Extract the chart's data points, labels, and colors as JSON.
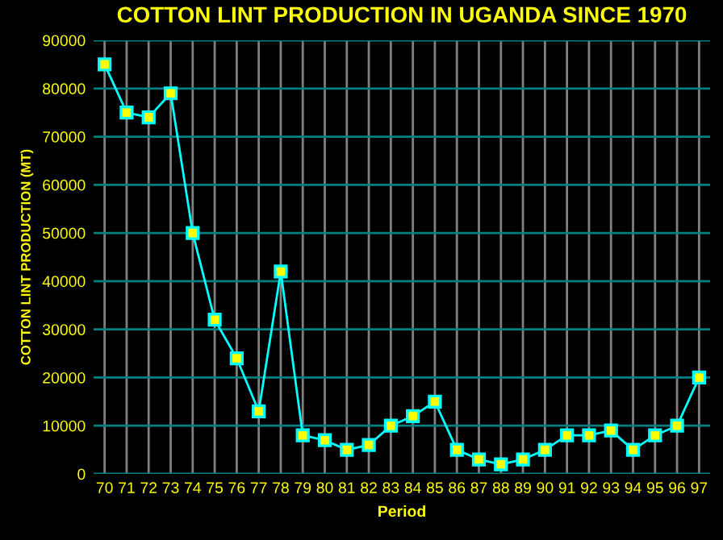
{
  "chart_data": {
    "type": "line",
    "title": "COTTON LINT PRODUCTION IN UGANDA SINCE 1970",
    "xlabel": "Period",
    "ylabel": "COTTON LINT PRODUCTION (MT)",
    "categories": [
      "70",
      "71",
      "72",
      "73",
      "74",
      "75",
      "76",
      "77",
      "78",
      "79",
      "80",
      "81",
      "82",
      "83",
      "84",
      "85",
      "86",
      "87",
      "88",
      "89",
      "90",
      "91",
      "92",
      "93",
      "94",
      "95",
      "96",
      "97"
    ],
    "series": [
      {
        "color": "#00ffff",
        "values": [
          85000,
          75000,
          74000,
          79000,
          50000,
          32000,
          24000,
          13000,
          42000,
          8000,
          7000,
          5000,
          6000,
          10000,
          12000,
          15000,
          5000,
          3000,
          2000,
          3000,
          5000,
          8000,
          8000,
          9000,
          5000,
          8000,
          10000,
          20000
        ]
      }
    ],
    "ylim": [
      0,
      90000
    ],
    "yticks": [
      0,
      10000,
      20000,
      30000,
      40000,
      50000,
      60000,
      70000,
      80000,
      90000
    ],
    "grid": true,
    "marker": "square",
    "line_style": "solid"
  }
}
